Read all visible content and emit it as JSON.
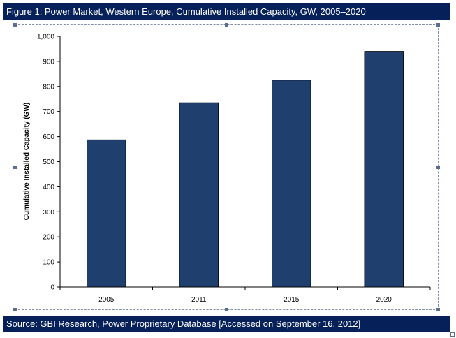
{
  "figure": {
    "title": "Figure 1: Power Market, Western Europe, Cumulative Installed Capacity, GW, 2005–2020",
    "source": "Source: GBI Research,  Power Proprietary Database [Accessed on September 16, 2012]"
  },
  "chart_data": {
    "type": "bar",
    "categories": [
      "2005",
      "2011",
      "2015",
      "2020"
    ],
    "values": [
      587,
      735,
      825,
      940
    ],
    "title": "",
    "xlabel": "",
    "ylabel": "Cumulative Installed Capacity (GW)",
    "ylim": [
      0,
      1000
    ],
    "yticks": [
      "0",
      "100",
      "200",
      "300",
      "400",
      "500",
      "600",
      "700",
      "800",
      "900",
      "1,000"
    ],
    "bar_color": "#1f3f6e",
    "grid": false,
    "legend": "none"
  }
}
